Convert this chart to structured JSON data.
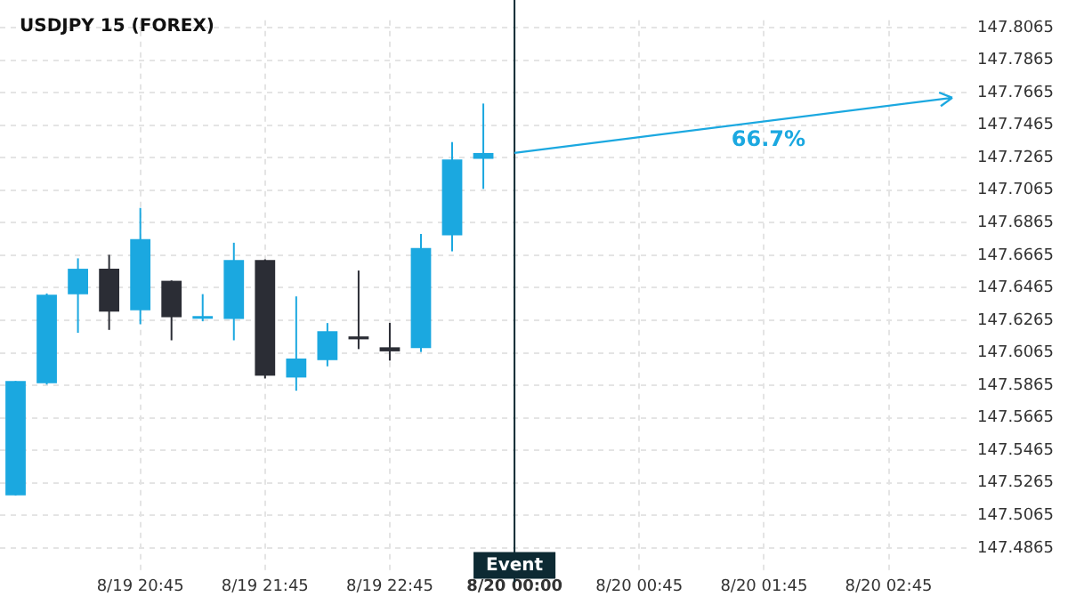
{
  "chart_data": {
    "type": "candlestick",
    "title": "USDJPY 15 (FOREX)",
    "categories": [
      null,
      null,
      null,
      null,
      "8/19 20:45",
      null,
      null,
      null,
      "8/19 21:45",
      null,
      null,
      null,
      "8/19 22:45",
      null,
      null,
      null,
      "8/20 00:00",
      null,
      null,
      null,
      "8/20 00:45",
      null,
      null,
      null,
      "8/20 01:45",
      null,
      null,
      null,
      "8/20 02:45",
      null,
      null
    ],
    "ohlc": [
      [
        147.5188,
        147.5892,
        147.5188,
        147.5892
      ],
      [
        147.5878,
        147.643,
        147.587,
        147.6422
      ],
      [
        147.6425,
        147.6646,
        147.6188,
        147.6582
      ],
      [
        147.6582,
        147.6668,
        147.6206,
        147.6319
      ],
      [
        147.6326,
        147.6956,
        147.6241,
        147.6764
      ],
      [
        147.6508,
        147.651,
        147.6142,
        147.6284
      ],
      [
        147.6289,
        147.6426,
        147.6259,
        147.6291
      ],
      [
        147.6273,
        147.6742,
        147.6142,
        147.6636
      ],
      [
        147.6636,
        147.664,
        147.5907,
        147.5924
      ],
      [
        147.5913,
        147.6412,
        147.5832,
        147.603
      ],
      [
        147.602,
        147.6248,
        147.5982,
        147.6198
      ],
      [
        147.6166,
        147.6571,
        147.6088,
        147.6148
      ],
      [
        147.6099,
        147.6249,
        147.6017,
        147.6074
      ],
      [
        147.6094,
        147.6796,
        147.607,
        147.671
      ],
      [
        147.6788,
        147.7361,
        147.6689,
        147.7254
      ],
      [
        147.7258,
        147.7598,
        147.7073,
        147.7294
      ],
      null,
      null,
      null,
      null,
      null,
      null,
      null,
      null,
      null,
      null,
      null,
      null,
      null,
      null,
      null
    ],
    "colors": [
      "#1ba8e0",
      "#1ba8e0",
      "#1ba8e0",
      "#2b2d35",
      "#1ba8e0",
      "#2b2d35",
      "#1ba8e0",
      "#1ba8e0",
      "#2b2d35",
      "#1ba8e0",
      "#1ba8e0",
      "#2b2d35",
      "#2b2d35",
      "#1ba8e0",
      "#1ba8e0",
      "#1ba8e0",
      null,
      null,
      null,
      null,
      null,
      null,
      null,
      null,
      null,
      null,
      null,
      null,
      null,
      null,
      null
    ],
    "annotations": [
      "66.7%"
    ],
    "ref_lines": [
      {
        "axis": "x",
        "value": "8/20 00:00",
        "label": "Event",
        "color": "#0d2a33"
      }
    ],
    "ylim": [
      147.472,
      147.811
    ],
    "yticks": [
      147.4865,
      147.5065,
      147.5265,
      147.5465,
      147.5665,
      147.5865,
      147.6065,
      147.6265,
      147.6465,
      147.6665,
      147.6865,
      147.7065,
      147.7265,
      147.7465,
      147.7665,
      147.7865,
      147.8065
    ],
    "grid": true
  }
}
